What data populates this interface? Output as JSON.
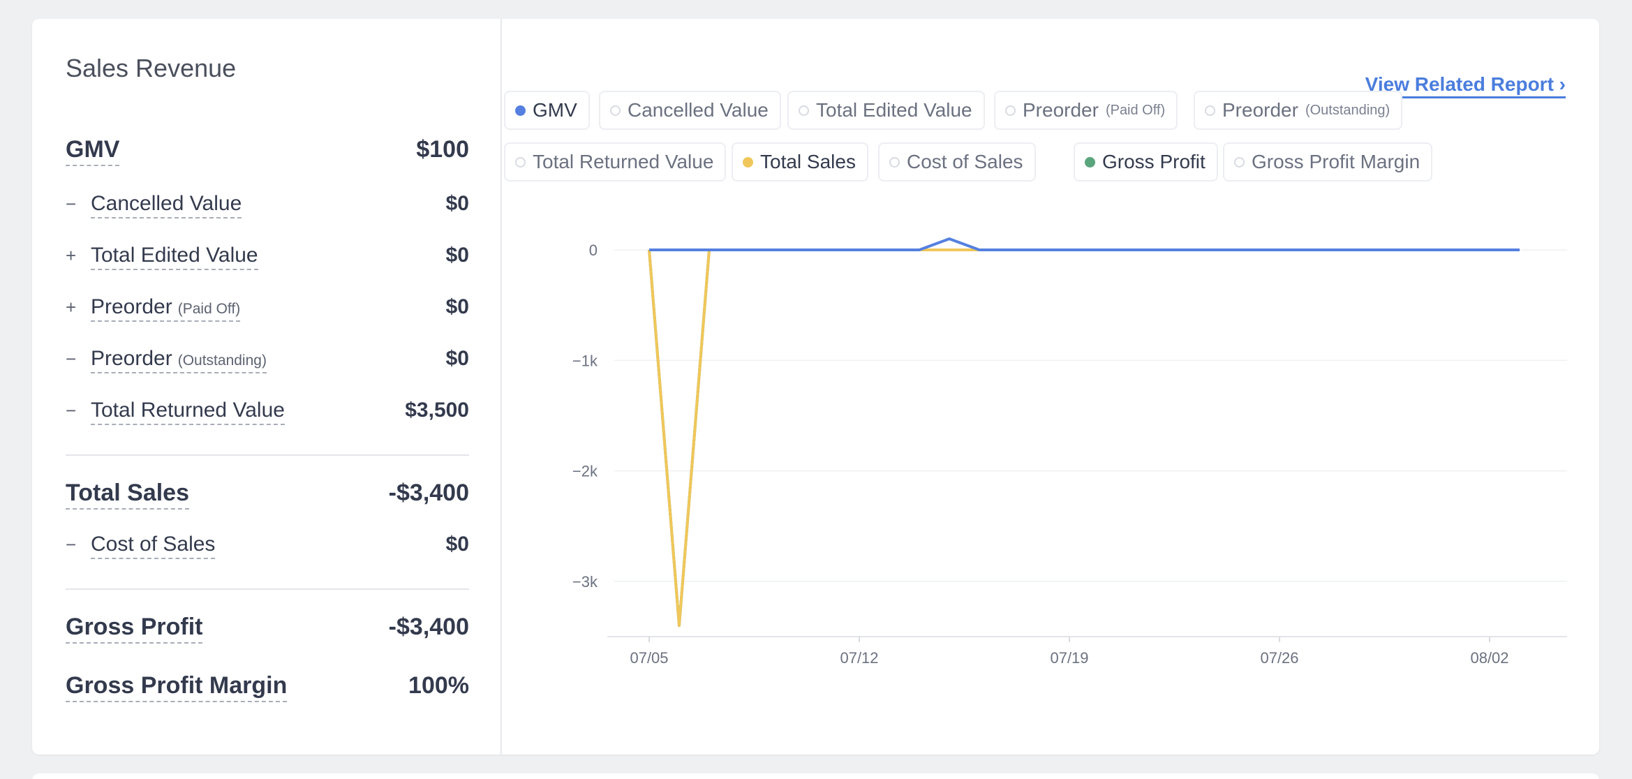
{
  "panel": {
    "title": "Sales Revenue",
    "report_link": "View Related Report ›",
    "rows": [
      {
        "sign": "",
        "label": "GMV",
        "sub": "",
        "value": "$100"
      },
      {
        "sign": "−",
        "label": "Cancelled Value",
        "sub": "",
        "value": "$0"
      },
      {
        "sign": "+",
        "label": "Total Edited Value",
        "sub": "",
        "value": "$0"
      },
      {
        "sign": "+",
        "label": "Preorder",
        "sub": "(Paid Off)",
        "value": "$0"
      },
      {
        "sign": "−",
        "label": "Preorder",
        "sub": "(Outstanding)",
        "value": "$0"
      },
      {
        "sign": "−",
        "label": "Total Returned Value",
        "sub": "",
        "value": "$3,500"
      },
      {
        "sign": "",
        "label": "Total Sales",
        "sub": "",
        "value": "-$3,400"
      },
      {
        "sign": "−",
        "label": "Cost of Sales",
        "sub": "",
        "value": "$0"
      },
      {
        "sign": "",
        "label": "Gross Profit",
        "sub": "",
        "value": "-$3,400"
      },
      {
        "sign": "",
        "label": "Gross Profit Margin",
        "sub": "",
        "value": "100%"
      }
    ]
  },
  "legend": [
    {
      "label": "GMV",
      "sub": "",
      "active": true,
      "color": "#5580e0"
    },
    {
      "label": "Cancelled Value",
      "sub": "",
      "active": false,
      "color": ""
    },
    {
      "label": "Total Edited Value",
      "sub": "",
      "active": false,
      "color": ""
    },
    {
      "label": "Preorder",
      "sub": "(Paid Off)",
      "active": false,
      "color": ""
    },
    {
      "label": "Preorder",
      "sub": "(Outstanding)",
      "active": false,
      "color": ""
    },
    {
      "label": "Total Returned Value",
      "sub": "",
      "active": false,
      "color": ""
    },
    {
      "label": "Total Sales",
      "sub": "",
      "active": true,
      "color": "#f0c75a"
    },
    {
      "label": "Cost of Sales",
      "sub": "",
      "active": false,
      "color": ""
    },
    {
      "label": "Gross Profit",
      "sub": "",
      "active": true,
      "color": "#5aa57c"
    },
    {
      "label": "Gross Profit Margin",
      "sub": "",
      "active": false,
      "color": ""
    }
  ],
  "chart_data": {
    "type": "line",
    "x": [
      "07/05",
      "07/06",
      "07/07",
      "07/08",
      "07/09",
      "07/10",
      "07/11",
      "07/12",
      "07/13",
      "07/14",
      "07/15",
      "07/16",
      "07/17",
      "07/18",
      "07/19",
      "07/20",
      "07/21",
      "07/22",
      "07/23",
      "07/24",
      "07/25",
      "07/26",
      "07/27",
      "07/28",
      "07/29",
      "07/30",
      "07/31",
      "08/01",
      "08/02",
      "08/03"
    ],
    "x_tick_labels": [
      "07/05",
      "07/12",
      "07/19",
      "07/26",
      "08/02"
    ],
    "y_tick_labels": [
      "0",
      "−1k",
      "−2k",
      "−3k"
    ],
    "y_ticks": [
      0,
      -1000,
      -2000,
      -3000
    ],
    "ylim": [
      -3500,
      0
    ],
    "grid": true,
    "series": [
      {
        "name": "Gross Profit",
        "color": "#5aa57c",
        "values": [
          0,
          -3400,
          0,
          0,
          0,
          0,
          0,
          0,
          0,
          0,
          0,
          0,
          0,
          0,
          0,
          0,
          0,
          0,
          0,
          0,
          0,
          0,
          0,
          0,
          0,
          0,
          0,
          0,
          0,
          0
        ]
      },
      {
        "name": "Total Sales",
        "color": "#f0c75a",
        "values": [
          0,
          -3400,
          0,
          0,
          0,
          0,
          0,
          0,
          0,
          0,
          0,
          0,
          0,
          0,
          0,
          0,
          0,
          0,
          0,
          0,
          0,
          0,
          0,
          0,
          0,
          0,
          0,
          0,
          0,
          0
        ]
      },
      {
        "name": "GMV",
        "color": "#5580e0",
        "values": [
          0,
          0,
          0,
          0,
          0,
          0,
          0,
          0,
          0,
          0,
          100,
          0,
          0,
          0,
          0,
          0,
          0,
          0,
          0,
          0,
          0,
          0,
          0,
          0,
          0,
          0,
          0,
          0,
          0,
          0
        ]
      }
    ]
  }
}
